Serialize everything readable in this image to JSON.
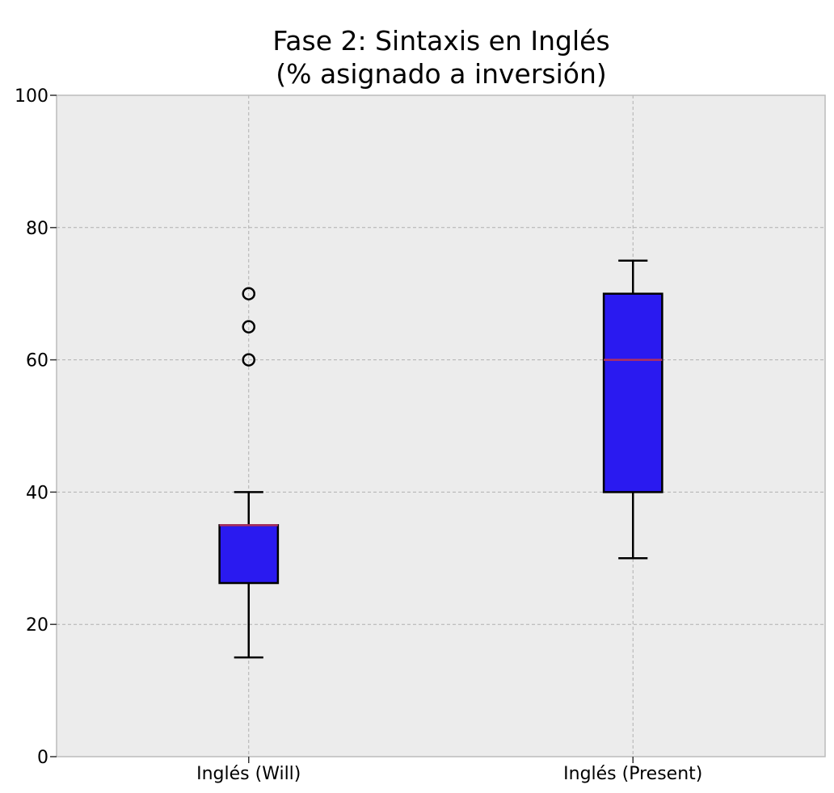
{
  "chart_data": {
    "type": "box",
    "title_lines": [
      "Fase 2: Sintaxis en Inglés",
      "(% asignado a inversión)"
    ],
    "xlabel": "",
    "ylabel": "",
    "ylim": [
      0,
      100
    ],
    "yticks": [
      0,
      20,
      40,
      60,
      80,
      100
    ],
    "grid": true,
    "categories": [
      "Inglés (Will)",
      "Inglés (Present)"
    ],
    "boxes": [
      {
        "category": "Inglés (Will)",
        "whisker_low": 15,
        "q1": 26.25,
        "median": 35,
        "q3": 35,
        "whisker_high": 40,
        "fliers": [
          60,
          65,
          70
        ]
      },
      {
        "category": "Inglés (Present)",
        "whisker_low": 30,
        "q1": 40,
        "median": 60,
        "q3": 70,
        "whisker_high": 75,
        "fliers": []
      }
    ],
    "colors": {
      "box_fill": "#2a1af0",
      "median": "#b03060",
      "plot_background": "#ececec"
    }
  }
}
